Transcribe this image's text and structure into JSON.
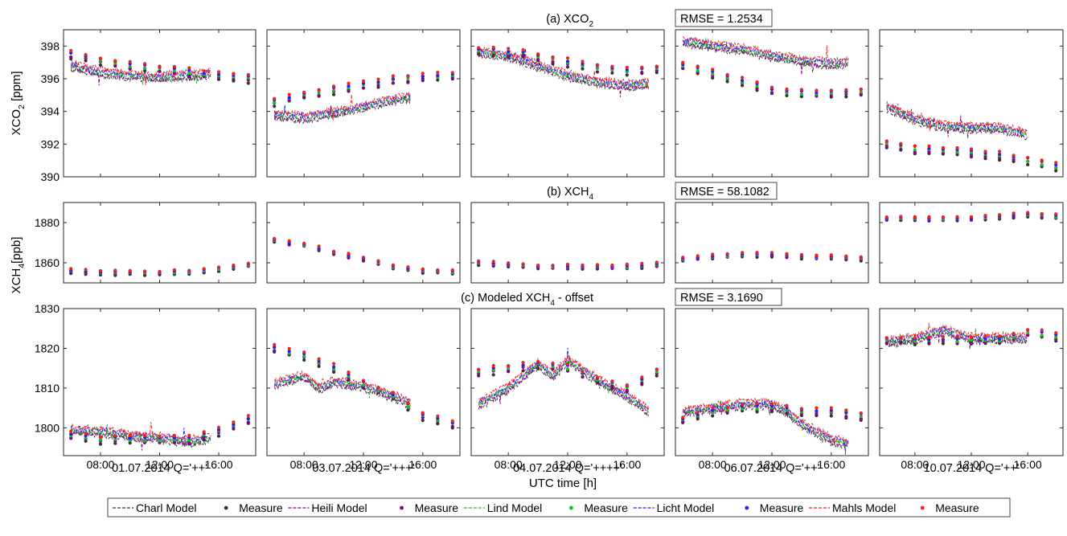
{
  "colors": {
    "charl": "#333333",
    "heili": "#8B008B",
    "lind": "#22BB22",
    "licht": "#2222EE",
    "mahls": "#EE2222"
  },
  "legend": {
    "position": "bottom",
    "entries": [
      {
        "station": "charl",
        "label": "Charl  Model",
        "kind": "model"
      },
      {
        "station": "charl",
        "label": "Measure",
        "kind": "measure"
      },
      {
        "station": "heili",
        "label": "Heili  Model",
        "kind": "model"
      },
      {
        "station": "heili",
        "label": "Measure",
        "kind": "measure"
      },
      {
        "station": "lind",
        "label": "Lind  Model",
        "kind": "model"
      },
      {
        "station": "lind",
        "label": "Measure",
        "kind": "measure"
      },
      {
        "station": "licht",
        "label": "Licht  Model",
        "kind": "model"
      },
      {
        "station": "licht",
        "label": "Measure",
        "kind": "measure"
      },
      {
        "station": "mahls",
        "label": "Mahls  Model",
        "kind": "model"
      },
      {
        "station": "mahls",
        "label": "Measure",
        "kind": "measure"
      }
    ]
  },
  "chart_data": {
    "type": "scatter",
    "x_unit": "hour",
    "xlim": [
      5.5,
      18.5
    ],
    "xticks": [
      8,
      12,
      16
    ],
    "xtick_labels": [
      "08:00",
      "12:00",
      "16:00"
    ],
    "xlabel": "UTC time [h]",
    "days": [
      {
        "label": "01.07.2014 Q='++'",
        "model_start": 6,
        "model_end": 15.5
      },
      {
        "label": "03.07.2014 Q='+++'",
        "model_start": 6,
        "model_end": 15.2
      },
      {
        "label": "04.07.2014 Q='++++'",
        "model_start": 6,
        "model_end": 17.5
      },
      {
        "label": "06.07.2014 Q='++'",
        "model_start": 6,
        "model_end": 17.2
      },
      {
        "label": "10.07.2014 Q='++'",
        "model_start": 6,
        "model_end": 16
      }
    ],
    "rows": [
      {
        "id": "xco2",
        "title_main": "(a) XCO",
        "title_sub": "2",
        "title_tail": "",
        "rmse": "RMSE = 1.2534",
        "ylabel_main": "XCO",
        "ylabel_sub": "2",
        "ylabel_tail": " [ppm]",
        "ylim": [
          390,
          399
        ],
        "yticks": [
          390,
          392,
          394,
          396,
          398
        ],
        "panels": [
          {
            "measure_trend": [
              [
                6,
                397.5
              ],
              [
                8,
                397.1
              ],
              [
                10,
                396.8
              ],
              [
                12,
                396.6
              ],
              [
                14,
                396.4
              ],
              [
                16,
                396.2
              ],
              [
                18,
                396.0
              ]
            ],
            "model_trend": [
              [
                6,
                396.8
              ],
              [
                8,
                396.4
              ],
              [
                10,
                396.2
              ],
              [
                12,
                396.1
              ],
              [
                14,
                396.2
              ],
              [
                15.5,
                396.3
              ]
            ]
          },
          {
            "measure_trend": [
              [
                6,
                394.6
              ],
              [
                8,
                395.0
              ],
              [
                10,
                395.3
              ],
              [
                12,
                395.6
              ],
              [
                14,
                395.9
              ],
              [
                16,
                396.1
              ],
              [
                18,
                396.2
              ]
            ],
            "model_trend": [
              [
                6,
                393.8
              ],
              [
                8,
                393.6
              ],
              [
                10,
                393.9
              ],
              [
                12,
                394.3
              ],
              [
                14,
                394.7
              ],
              [
                15.2,
                394.9
              ]
            ]
          },
          {
            "measure_trend": [
              [
                6,
                397.7
              ],
              [
                8,
                397.6
              ],
              [
                9,
                397.6
              ],
              [
                10,
                397.3
              ],
              [
                12,
                397.0
              ],
              [
                14,
                396.7
              ],
              [
                16,
                396.5
              ],
              [
                18,
                396.6
              ]
            ],
            "model_trend": [
              [
                6,
                397.6
              ],
              [
                8,
                397.4
              ],
              [
                10,
                396.8
              ],
              [
                12,
                396.2
              ],
              [
                14,
                395.8
              ],
              [
                16,
                395.6
              ],
              [
                17.5,
                395.7
              ]
            ]
          },
          {
            "measure_trend": [
              [
                6,
                396.8
              ],
              [
                8,
                396.3
              ],
              [
                10,
                395.8
              ],
              [
                12,
                395.3
              ],
              [
                14,
                395.1
              ],
              [
                16,
                395.1
              ],
              [
                18,
                395.2
              ]
            ],
            "model_trend": [
              [
                6,
                398.3
              ],
              [
                8,
                398.0
              ],
              [
                10,
                397.8
              ],
              [
                12,
                397.4
              ],
              [
                14,
                397.1
              ],
              [
                16,
                396.9
              ],
              [
                17.2,
                397.0
              ]
            ]
          },
          {
            "measure_trend": [
              [
                6,
                392.0
              ],
              [
                8,
                391.7
              ],
              [
                10,
                391.6
              ],
              [
                12,
                391.5
              ],
              [
                14,
                391.3
              ],
              [
                16,
                391.0
              ],
              [
                18,
                390.6
              ]
            ],
            "model_trend": [
              [
                6,
                394.3
              ],
              [
                8,
                393.5
              ],
              [
                10,
                393.1
              ],
              [
                12,
                393.0
              ],
              [
                14,
                393.0
              ],
              [
                16,
                392.6
              ]
            ]
          }
        ]
      },
      {
        "id": "xch4",
        "title_main": "(b) XCH",
        "title_sub": "4",
        "title_tail": "",
        "rmse": "RMSE = 58.1082",
        "ylabel_main": "XCH",
        "ylabel_sub": "4",
        "ylabel_tail": "[ppb]",
        "ylim": [
          1850,
          1890
        ],
        "yticks": [
          1860,
          1880
        ],
        "panels": [
          {
            "measure_trend": [
              [
                6,
                1856
              ],
              [
                8,
                1855
              ],
              [
                10,
                1855
              ],
              [
                12,
                1855
              ],
              [
                14,
                1855.5
              ],
              [
                16,
                1857
              ],
              [
                18,
                1859
              ]
            ],
            "model_trend": []
          },
          {
            "measure_trend": [
              [
                6,
                1871
              ],
              [
                8,
                1869
              ],
              [
                10,
                1865
              ],
              [
                12,
                1862
              ],
              [
                14,
                1858
              ],
              [
                16,
                1856
              ],
              [
                18,
                1855.5
              ]
            ],
            "model_trend": []
          },
          {
            "measure_trend": [
              [
                6,
                1860
              ],
              [
                8,
                1859
              ],
              [
                10,
                1858
              ],
              [
                12,
                1858
              ],
              [
                14,
                1858
              ],
              [
                16,
                1858
              ],
              [
                18,
                1859
              ]
            ],
            "model_trend": []
          },
          {
            "measure_trend": [
              [
                6,
                1862
              ],
              [
                8,
                1863
              ],
              [
                10,
                1864
              ],
              [
                12,
                1864
              ],
              [
                14,
                1863
              ],
              [
                16,
                1863
              ],
              [
                18,
                1862
              ]
            ],
            "model_trend": []
          },
          {
            "measure_trend": [
              [
                6,
                1882
              ],
              [
                8,
                1882
              ],
              [
                10,
                1882
              ],
              [
                12,
                1882
              ],
              [
                14,
                1883
              ],
              [
                16,
                1884
              ],
              [
                18,
                1883
              ]
            ],
            "model_trend": []
          }
        ]
      },
      {
        "id": "xch4off",
        "title_main": "(c) Modeled XCH",
        "title_sub": "4",
        "title_tail": " - offset",
        "rmse": "RMSE = 3.1690",
        "ylabel_main": "",
        "ylabel_sub": "",
        "ylabel_tail": "",
        "ylim": [
          1793,
          1830
        ],
        "yticks": [
          1800,
          1810,
          1820,
          1830
        ],
        "panels": [
          {
            "measure_trend": [
              [
                6,
                1798
              ],
              [
                8,
                1797
              ],
              [
                10,
                1797
              ],
              [
                12,
                1797
              ],
              [
                14,
                1797
              ],
              [
                16,
                1799
              ],
              [
                18,
                1802
              ]
            ],
            "model_trend": [
              [
                6,
                1799.5
              ],
              [
                8,
                1799
              ],
              [
                10,
                1798
              ],
              [
                12,
                1797.5
              ],
              [
                14,
                1796.5
              ],
              [
                15.5,
                1797.5
              ]
            ]
          },
          {
            "measure_trend": [
              [
                6,
                1820
              ],
              [
                8,
                1818
              ],
              [
                10,
                1815
              ],
              [
                12,
                1811
              ],
              [
                14,
                1808
              ],
              [
                16,
                1803
              ],
              [
                18,
                1801
              ]
            ],
            "model_trend": [
              [
                6,
                1811
              ],
              [
                8,
                1813
              ],
              [
                9,
                1810
              ],
              [
                10,
                1811.5
              ],
              [
                12,
                1810.5
              ],
              [
                14,
                1808
              ],
              [
                15.2,
                1806
              ]
            ]
          },
          {
            "measure_trend": [
              [
                6,
                1814
              ],
              [
                8,
                1815
              ],
              [
                10,
                1816
              ],
              [
                12,
                1815
              ],
              [
                14,
                1812
              ],
              [
                16,
                1810
              ],
              [
                18,
                1814
              ]
            ],
            "model_trend": [
              [
                6,
                1806
              ],
              [
                8,
                1810
              ],
              [
                10,
                1816
              ],
              [
                11,
                1813
              ],
              [
                12,
                1817
              ],
              [
                14,
                1812
              ],
              [
                16,
                1808
              ],
              [
                17.5,
                1804
              ]
            ]
          },
          {
            "measure_trend": [
              [
                6,
                1802
              ],
              [
                8,
                1804
              ],
              [
                10,
                1805
              ],
              [
                12,
                1805
              ],
              [
                14,
                1804
              ],
              [
                16,
                1804
              ],
              [
                18,
                1803
              ]
            ],
            "model_trend": [
              [
                6,
                1804
              ],
              [
                8,
                1805
              ],
              [
                10,
                1806
              ],
              [
                12,
                1806
              ],
              [
                13,
                1804
              ],
              [
                14,
                1801
              ],
              [
                16,
                1797
              ],
              [
                17.2,
                1796
              ]
            ]
          },
          {
            "measure_trend": [
              [
                6,
                1822
              ],
              [
                8,
                1822
              ],
              [
                10,
                1822
              ],
              [
                12,
                1822
              ],
              [
                14,
                1822
              ],
              [
                16,
                1824
              ],
              [
                18,
                1823
              ]
            ],
            "model_trend": [
              [
                6,
                1821.5
              ],
              [
                8,
                1822.5
              ],
              [
                10,
                1824.5
              ],
              [
                12,
                1822.5
              ],
              [
                14,
                1822.5
              ],
              [
                16,
                1822.5
              ]
            ]
          }
        ]
      }
    ]
  }
}
